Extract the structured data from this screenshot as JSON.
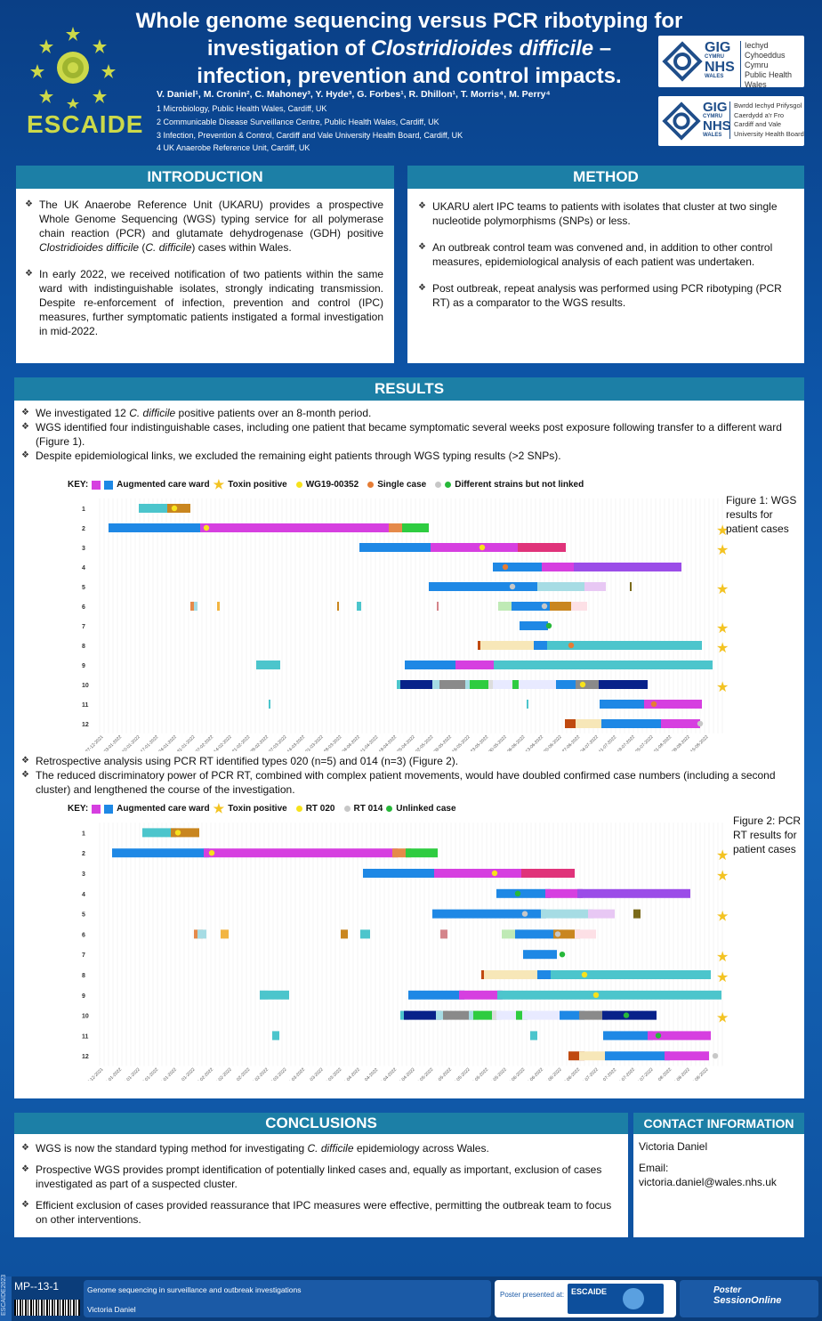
{
  "header": {
    "title_line1": "Whole genome sequencing versus PCR ribotyping for",
    "title_line2_pre": "investigation of ",
    "title_line2_italic": "Clostridioides difficile",
    "title_line2_post": " –",
    "title_line3": "infection, prevention and control impacts.",
    "authors": "V. Daniel¹, M. Cronin², C. Mahoney³, Y. Hyde³, G. Forbes¹, R. Dhillon¹, T. Morris⁴, M. Perry⁴",
    "affiliations": [
      "1 Microbiology, Public Health Wales, Cardiff, UK",
      "2 Communicable Disease Surveillance Centre, Public Health Wales, Cardiff, UK",
      "3 Infection, Prevention & Control, Cardiff and Vale University Health Board, Cardiff, UK",
      "4 UK Anaerobe Reference Unit, Cardiff, UK"
    ],
    "escaide_logo": "ESCAIDE",
    "logo1": {
      "gig": "GIG",
      "cymru": "CYMRU",
      "nhs": "NHS",
      "wales": "WALES",
      "lines": [
        "Iechyd Cyhoeddus",
        "Cymru",
        "Public Health",
        "Wales"
      ]
    },
    "logo2": {
      "gig": "GIG",
      "cymru": "CYMRU",
      "nhs": "NHS",
      "wales": "WALES",
      "lines": [
        "Bwrdd Iechyd Prifysgol",
        "Caerdydd a'r Fro",
        "Cardiff and Vale",
        "University Health Board"
      ]
    }
  },
  "introduction": {
    "heading": "INTRODUCTION",
    "bullets": [
      "The UK Anaerobe Reference Unit (UKARU) provides a prospective Whole Genome Sequencing (WGS) typing service for all polymerase chain reaction (PCR) and glutamate dehydrogenase (GDH) positive Clostridioides difficile (C. difficile) cases within Wales.",
      "In early 2022, we received notification of two patients within the same ward with indistinguishable isolates, strongly indicating transmission. Despite re-enforcement of infection, prevention and control (IPC) measures, further symptomatic patients instigated a formal investigation in mid-2022."
    ]
  },
  "method": {
    "heading": "METHOD",
    "bullets": [
      "UKARU alert IPC teams to patients with isolates that cluster at two single nucleotide polymorphisms (SNPs) or less.",
      "An outbreak control team was convened and, in addition to other control measures, epidemiological analysis of each patient was undertaken.",
      "Post outbreak, repeat analysis was performed using PCR ribotyping (PCR RT) as a comparator to the WGS results."
    ]
  },
  "results": {
    "heading": "RESULTS",
    "bullets_top": [
      "We investigated 12 C. difficile positive patients over an 8-month period.",
      "WGS identified four indistinguishable cases, including one patient that became symptomatic several weeks post exposure following transfer to a different ward (Figure 1).",
      "Despite epidemiological links, we excluded the remaining eight patients through WGS typing results (>2 SNPs)."
    ],
    "bullets_mid": [
      "Retrospective analysis using PCR RT identified types 020 (n=5) and 014 (n=3) (Figure 2).",
      "The reduced discriminatory power of PCR RT, combined with complex patient movements, would have doubled confirmed case numbers (including a second cluster) and lengthened the course of the investigation."
    ],
    "figure1_caption": "Figure 1: WGS results for patient cases",
    "figure2_caption": "Figure 2: PCR RT results for patient cases",
    "key1": {
      "label": "KEY:",
      "acw": "Augmented care ward",
      "toxin": "Toxin positive",
      "a": "WG19-00352",
      "b": "Single case",
      "c": "Different strains but not linked"
    },
    "key2": {
      "label": "KEY:",
      "acw": "Augmented care ward",
      "toxin": "Toxin positive",
      "a": "RT 020",
      "b": "RT 014",
      "c": "Unlinked case"
    }
  },
  "chart_data": [
    {
      "type": "timeline",
      "title": "Figure 1: WGS results for patient cases",
      "rows": [
        "1",
        "2",
        "3",
        "4",
        "5",
        "6",
        "7",
        "8",
        "9",
        "10",
        "11",
        "12"
      ],
      "x_tick_labels": [
        "27-12-2021",
        "03-01-2022",
        "10-01-2022",
        "17-01-2022",
        "24-01-2022",
        "31-01-2022",
        "07-02-2022",
        "14-02-2022",
        "21-02-2022",
        "28-02-2022",
        "07-03-2022",
        "14-03-2022",
        "21-03-2022",
        "28-03-2022",
        "04-04-2022",
        "11-04-2022",
        "18-04-2022",
        "25-04-2022",
        "02-05-2022",
        "09-05-2022",
        "16-05-2022",
        "23-05-2022",
        "30-05-2022",
        "06-06-2022",
        "13-06-2022",
        "20-06-2022",
        "27-06-2022",
        "04-07-2022",
        "11-07-2022",
        "18-07-2022",
        "25-07-2022",
        "01-08-2022",
        "08-08-2022",
        "15-08-2022"
      ],
      "toxin_positive_rows": [
        "2",
        "3",
        "5",
        "7",
        "8",
        "10"
      ]
    },
    {
      "type": "timeline",
      "title": "Figure 2: PCR RT results for patient cases",
      "rows": [
        "1",
        "2",
        "3",
        "4",
        "5",
        "6",
        "7",
        "8",
        "9",
        "10",
        "11",
        "12"
      ],
      "x_tick_labels": [
        "27-12-2021",
        "03-01-2022",
        "10-01-2022",
        "17-01-2022",
        "24-01-2022",
        "31-01-2022",
        "07-02-2022",
        "14-02-2022",
        "21-02-2022",
        "28-02-2022",
        "07-03-2022",
        "14-03-2022",
        "21-03-2022",
        "28-03-2022",
        "04-04-2022",
        "11-04-2022",
        "18-04-2022",
        "25-04-2022",
        "02-05-2022",
        "09-05-2022",
        "16-05-2022",
        "23-05-2022",
        "30-05-2022",
        "06-06-2022",
        "13-06-2022",
        "20-06-2022",
        "27-06-2022",
        "04-07-2022",
        "11-07-2022",
        "18-07-2022",
        "25-07-2022",
        "01-08-2022",
        "08-08-2022",
        "15-08-2022"
      ],
      "toxin_positive_rows": [
        "2",
        "3",
        "5",
        "7",
        "8",
        "10"
      ]
    }
  ],
  "conclusions": {
    "heading": "CONCLUSIONS",
    "bullets": [
      "WGS is now the standard typing method for investigating C. difficile epidemiology across Wales.",
      "Prospective WGS provides prompt identification of potentially linked cases and, equally as important, exclusion of cases investigated as part of a suspected cluster.",
      "Efficient exclusion of cases provided reassurance that IPC measures were effective, permitting the outbreak team to focus on other interventions."
    ]
  },
  "contact": {
    "heading": "CONTACT INFORMATION",
    "name": "Victoria Daniel",
    "email_label": "Email:",
    "email": "victoria.daniel@wales.nhs.uk"
  },
  "footer": {
    "poster_id": "MP--13-1",
    "side_tag": "ESCAIDE2023",
    "session": "Genome sequencing in surveillance and outbreak investigations",
    "presenter": "Victoria Daniel",
    "presented_at": "Poster presented at:",
    "escaide_small": "ESCAIDE",
    "pso_line1": "Poster",
    "pso_line2": "SessionOnline"
  },
  "colors": {
    "panel_header": "#1c7fa6",
    "ward_blue": "#1e88e5",
    "ward_magenta": "#d63fe0",
    "teal": "#4cc5cc",
    "toxin_star": "#f3c322",
    "escaide_green": "#ccd94a"
  }
}
